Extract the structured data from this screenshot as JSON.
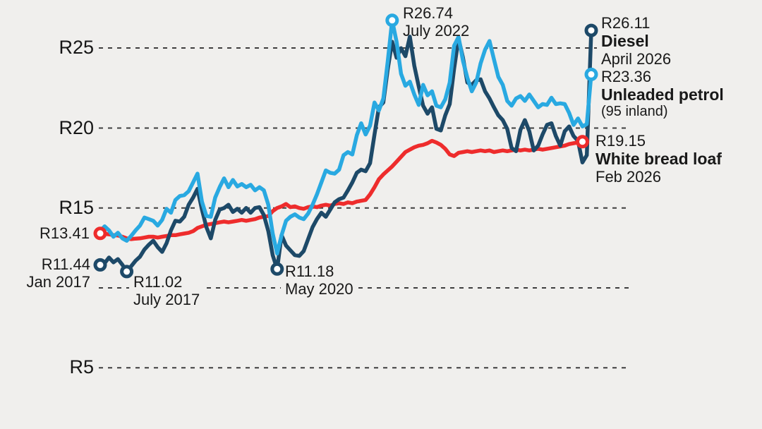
{
  "colors": {
    "background": "#f0efed",
    "diesel": "#1d4968",
    "petrol": "#29a9e1",
    "bread": "#ee2c2c",
    "gridline": "#3e3e3e",
    "text": "#161616"
  },
  "y_axis": {
    "r25": "R25",
    "r20": "R20",
    "r15": "R15",
    "r5": "R5"
  },
  "chart_data": {
    "type": "line",
    "currency": "R",
    "x_axis": {
      "unit": "month",
      "first": "2017-01",
      "last": "2026-04",
      "note": "monthly points, Jan 2017 to Apr 2026"
    },
    "ylim": [
      2.5,
      28.5
    ],
    "gridline_values": [
      5,
      10,
      15,
      20,
      25
    ],
    "visible_ytick_labels": [
      "R25",
      "R20",
      "R15",
      "R5"
    ],
    "grid": "dashed-horizontal",
    "legend_position": "inline-right-annotations",
    "series": [
      {
        "id": "diesel",
        "name": "Diesel",
        "color": "#1d4968",
        "values": [
          11.44,
          11.55,
          11.9,
          11.6,
          11.8,
          11.45,
          11.02,
          11.35,
          11.7,
          11.95,
          12.4,
          12.7,
          12.95,
          12.55,
          12.25,
          12.8,
          13.6,
          14.2,
          14.15,
          14.45,
          15.2,
          15.65,
          16.2,
          14.9,
          13.8,
          13.1,
          14.25,
          14.9,
          15.0,
          15.2,
          14.75,
          14.95,
          14.7,
          15.0,
          14.7,
          15.0,
          15.05,
          14.55,
          13.55,
          12.05,
          11.18,
          13.3,
          12.65,
          12.35,
          12.05,
          12.0,
          12.3,
          13.05,
          13.8,
          14.3,
          14.7,
          14.45,
          14.9,
          15.35,
          15.55,
          15.65,
          16.1,
          16.6,
          17.2,
          17.4,
          17.3,
          17.8,
          19.6,
          21.3,
          21.6,
          23.7,
          25.4,
          24.4,
          25.0,
          24.5,
          25.72,
          23.9,
          22.6,
          21.4,
          20.9,
          21.3,
          19.95,
          19.85,
          20.8,
          21.5,
          23.7,
          25.6,
          24.4,
          22.85,
          22.7,
          23.0,
          23.05,
          22.3,
          21.85,
          21.3,
          20.8,
          20.5,
          19.95,
          18.75,
          18.55,
          19.9,
          20.5,
          19.8,
          18.6,
          18.9,
          19.6,
          20.2,
          20.3,
          19.5,
          18.9,
          19.8,
          20.1,
          19.5,
          19.2,
          17.85,
          18.3,
          26.11
        ]
      },
      {
        "id": "petrol",
        "name": "Unleaded petrol (95 inland)",
        "color": "#29a9e1",
        "values": [
          13.55,
          13.85,
          13.6,
          13.2,
          13.45,
          13.1,
          12.95,
          13.25,
          13.6,
          13.9,
          14.4,
          14.3,
          14.2,
          13.9,
          14.25,
          14.95,
          14.7,
          15.5,
          15.75,
          15.8,
          16.05,
          16.6,
          17.15,
          15.4,
          14.5,
          14.45,
          15.65,
          16.3,
          16.85,
          16.3,
          16.75,
          16.35,
          16.5,
          16.3,
          16.45,
          16.1,
          16.3,
          16.1,
          15.2,
          13.4,
          12.15,
          13.3,
          14.2,
          14.45,
          14.6,
          14.4,
          14.3,
          14.65,
          15.2,
          15.85,
          16.6,
          17.35,
          17.2,
          17.15,
          17.4,
          18.3,
          18.5,
          18.35,
          19.55,
          20.3,
          19.6,
          20.15,
          21.6,
          21.1,
          21.85,
          24.2,
          26.74,
          25.4,
          23.4,
          22.65,
          22.9,
          22.1,
          21.45,
          22.7,
          22.05,
          22.3,
          21.4,
          21.3,
          21.8,
          22.85,
          25.15,
          25.7,
          24.2,
          23.15,
          22.3,
          22.85,
          24.05,
          24.9,
          25.45,
          24.3,
          23.2,
          22.7,
          21.7,
          21.4,
          21.85,
          22.0,
          21.7,
          22.1,
          21.7,
          21.3,
          21.5,
          21.45,
          21.9,
          21.5,
          21.55,
          21.5,
          20.95,
          20.2,
          20.6,
          20.1,
          20.25,
          23.36
        ]
      },
      {
        "id": "bread",
        "name": "White bread loaf",
        "color": "#ee2c2c",
        "values": [
          13.41,
          13.38,
          13.35,
          13.3,
          13.28,
          13.2,
          13.1,
          13.05,
          13.08,
          13.1,
          13.15,
          13.2,
          13.2,
          13.15,
          13.2,
          13.25,
          13.3,
          13.3,
          13.35,
          13.4,
          13.45,
          13.55,
          13.75,
          13.85,
          13.95,
          14.0,
          14.05,
          14.1,
          14.15,
          14.1,
          14.15,
          14.2,
          14.25,
          14.2,
          14.25,
          14.3,
          14.4,
          14.45,
          14.5,
          14.8,
          15.0,
          15.1,
          15.25,
          15.05,
          15.1,
          15.0,
          14.95,
          15.05,
          15.1,
          15.05,
          15.15,
          15.2,
          15.15,
          15.25,
          15.3,
          15.25,
          15.35,
          15.3,
          15.4,
          15.45,
          15.5,
          15.85,
          16.3,
          16.8,
          17.1,
          17.35,
          17.6,
          17.9,
          18.2,
          18.5,
          18.65,
          18.8,
          18.9,
          18.95,
          19.05,
          19.2,
          19.1,
          18.95,
          18.7,
          18.35,
          18.25,
          18.45,
          18.5,
          18.55,
          18.5,
          18.55,
          18.6,
          18.55,
          18.6,
          18.5,
          18.55,
          18.6,
          18.55,
          18.6,
          18.65,
          18.6,
          18.65,
          18.6,
          18.65,
          18.7,
          18.65,
          18.7,
          18.75,
          18.8,
          18.85,
          18.9,
          19.0,
          19.05,
          19.1,
          19.15
        ]
      }
    ],
    "markers": [
      {
        "series": "petrol",
        "month_index": 66,
        "value": 26.74
      },
      {
        "series": "diesel",
        "month_index": 111,
        "value": 26.11
      },
      {
        "series": "petrol",
        "month_index": 111,
        "value": 23.36
      },
      {
        "series": "bread",
        "month_index": 109,
        "value": 19.15
      },
      {
        "series": "bread",
        "month_index": 0,
        "value": 13.41
      },
      {
        "series": "diesel",
        "month_index": 0,
        "value": 11.44
      },
      {
        "series": "diesel",
        "month_index": 6,
        "value": 11.02
      },
      {
        "series": "diesel",
        "month_index": 40,
        "value": 11.18
      }
    ],
    "annotations": {
      "peak": {
        "value": "R26.74",
        "date": "July 2022"
      },
      "diesel_end": {
        "value": "R26.11",
        "name": "Diesel",
        "date": "April 2026"
      },
      "petrol_end": {
        "value": "R23.36",
        "name": "Unleaded petrol",
        "sub": "(95 inland)"
      },
      "bread_end": {
        "value": "R19.15",
        "name": "White bread loaf",
        "date": "Feb 2026"
      },
      "bread_start": {
        "value": "R13.41"
      },
      "diesel_start": {
        "value": "R11.44",
        "date": "Jan 2017"
      },
      "jul2017_dip": {
        "value": "R11.02",
        "date": "July 2017"
      },
      "may2020_dip": {
        "value": "R11.18",
        "date": "May 2020"
      }
    }
  }
}
